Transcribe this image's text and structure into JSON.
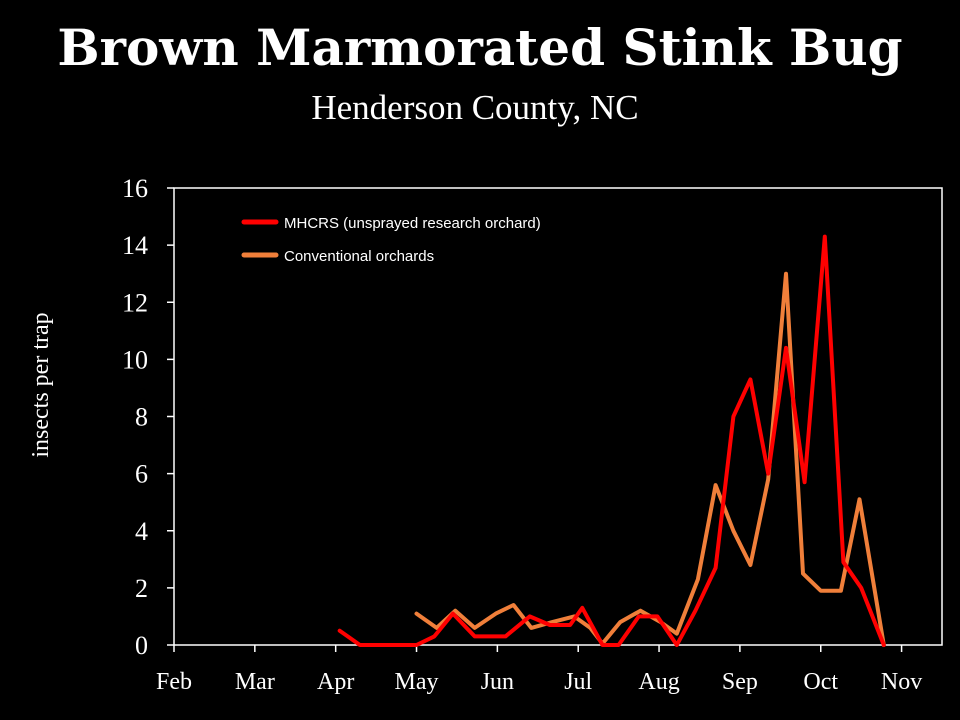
{
  "chart_data": {
    "type": "line",
    "title": "Brown Marmorated Stink Bug",
    "subtitle": "Henderson County, NC",
    "ylabel": "insects per trap",
    "xlabel": "",
    "ylim": [
      0,
      16
    ],
    "yticks": [
      0,
      2,
      4,
      6,
      8,
      10,
      12,
      14,
      16
    ],
    "x_categories": [
      "Feb",
      "Mar",
      "Apr",
      "May",
      "Jun",
      "Jul",
      "Aug",
      "Sep",
      "Oct",
      "Nov"
    ],
    "x_domain": [
      0,
      9.5
    ],
    "grid": false,
    "legend_position": "top-left",
    "series": [
      {
        "name": "MHCRS (unsprayed research orchard)",
        "color": "#ff0000",
        "points": [
          [
            2.05,
            0.5
          ],
          [
            2.3,
            0.0
          ],
          [
            2.75,
            0.0
          ],
          [
            3.0,
            0.0
          ],
          [
            3.22,
            0.3
          ],
          [
            3.45,
            1.1
          ],
          [
            3.72,
            0.3
          ],
          [
            4.1,
            0.3
          ],
          [
            4.4,
            1.0
          ],
          [
            4.65,
            0.7
          ],
          [
            4.9,
            0.7
          ],
          [
            5.05,
            1.3
          ],
          [
            5.3,
            0.0
          ],
          [
            5.5,
            0.0
          ],
          [
            5.75,
            1.0
          ],
          [
            5.98,
            1.0
          ],
          [
            6.22,
            0.0
          ],
          [
            6.45,
            1.2
          ],
          [
            6.7,
            2.7
          ],
          [
            6.92,
            8.0
          ],
          [
            7.13,
            9.3
          ],
          [
            7.35,
            6.0
          ],
          [
            7.57,
            10.4
          ],
          [
            7.8,
            5.7
          ],
          [
            8.05,
            14.3
          ],
          [
            8.28,
            2.9
          ],
          [
            8.5,
            2.0
          ],
          [
            8.78,
            0.0
          ]
        ]
      },
      {
        "name": "Conventional orchards",
        "color": "#f07f3a",
        "points": [
          [
            3.0,
            1.1
          ],
          [
            3.25,
            0.6
          ],
          [
            3.48,
            1.2
          ],
          [
            3.72,
            0.6
          ],
          [
            3.98,
            1.1
          ],
          [
            4.2,
            1.4
          ],
          [
            4.42,
            0.6
          ],
          [
            4.68,
            0.8
          ],
          [
            4.95,
            1.0
          ],
          [
            5.15,
            0.6
          ],
          [
            5.3,
            0.05
          ],
          [
            5.52,
            0.8
          ],
          [
            5.77,
            1.2
          ],
          [
            6.02,
            0.8
          ],
          [
            6.22,
            0.4
          ],
          [
            6.48,
            2.3
          ],
          [
            6.7,
            5.6
          ],
          [
            6.92,
            4.0
          ],
          [
            7.13,
            2.8
          ],
          [
            7.35,
            5.8
          ],
          [
            7.57,
            13.0
          ],
          [
            7.78,
            2.5
          ],
          [
            8.0,
            1.9
          ],
          [
            8.25,
            1.9
          ],
          [
            8.48,
            5.1
          ],
          [
            8.78,
            0.0
          ]
        ]
      }
    ]
  }
}
